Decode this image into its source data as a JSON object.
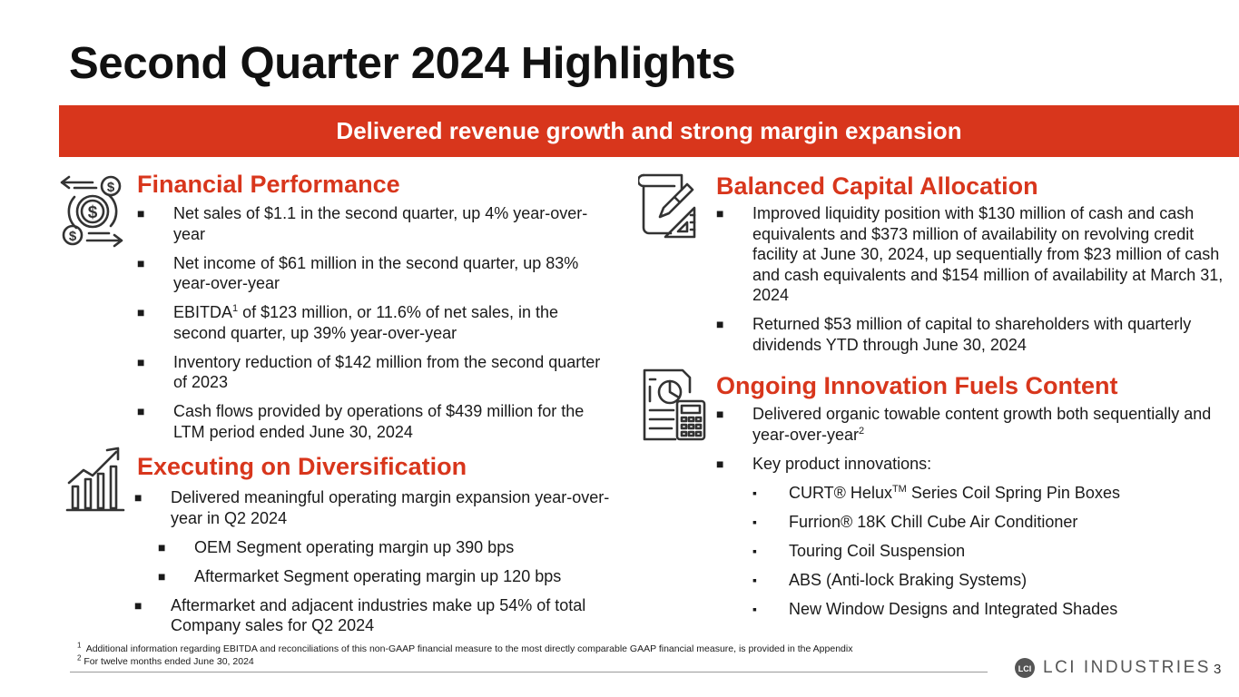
{
  "title": "Second Quarter 2024 Highlights",
  "banner": "Delivered revenue growth and strong margin expansion",
  "financial": {
    "heading": "Financial Performance",
    "bullets": [
      "Net sales of $1.1 in the second quarter, up 4% year-over-year",
      "Net income of $61 million in the second quarter, up 83% year-over-year",
      {
        "pre": "EBITDA",
        "sup": "1",
        "post": " of $123 million, or 11.6% of net sales, in the second quarter, up 39% year-over-year"
      },
      "Inventory reduction of $142 million from the second quarter of 2023",
      "Cash flows provided by operations of $439 million for the LTM period ended June 30, 2024"
    ]
  },
  "diversification": {
    "heading": "Executing on Diversification",
    "bullets": [
      "Delivered meaningful operating margin expansion year-over-year in Q2 2024",
      "OEM Segment operating margin up 390 bps",
      "Aftermarket Segment operating margin up 120 bps",
      "Aftermarket and adjacent industries make up 54% of total Company sales for Q2 2024"
    ]
  },
  "capital": {
    "heading": "Balanced Capital Allocation",
    "bullets": [
      "Improved liquidity position with $130 million of cash and cash equivalents and $373 million of availability on revolving credit facility at June 30, 2024, up sequentially from $23 million of cash and cash equivalents and $154 million of availability at March 31, 2024",
      "Returned $53 million of capital to shareholders with quarterly dividends YTD through June 30, 2024"
    ]
  },
  "innovation": {
    "heading": "Ongoing Innovation Fuels Content",
    "bullets": [
      {
        "pre": "Delivered organic towable content growth both sequentially and year-over-year",
        "sup": "2"
      },
      "Key product innovations:"
    ],
    "products": [
      {
        "pre": "CURT® Helux",
        "sup": "TM",
        "post": " Series Coil Spring Pin Boxes"
      },
      "Furrion® 18K Chill Cube Air Conditioner",
      "Touring Coil Suspension",
      "ABS (Anti-lock Braking Systems)",
      "New Window Designs and Integrated Shades"
    ]
  },
  "footnotes": {
    "one_num": "1",
    "one": "Additional information regarding EBITDA and reconciliations of this non-GAAP financial measure to the most directly comparable GAAP financial measure, is provided in the Appendix",
    "two_num": "2",
    "two": "For twelve months ended June 30, 2024"
  },
  "logo": {
    "letters": "LCI",
    "text": "LCI INDUSTRIES"
  },
  "page_number": "3",
  "colors": {
    "accent": "#d8361c",
    "text": "#1a1a1a"
  }
}
